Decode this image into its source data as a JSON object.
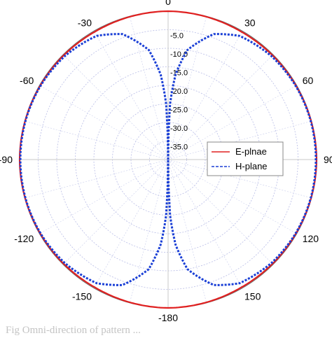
{
  "chart_data": {
    "type": "polar-line",
    "unit": "dB",
    "r_ticks": [
      "-5.0",
      "-10.0",
      "-15.0",
      "-20.0",
      "-25.0",
      "-30.0",
      "-35.0"
    ],
    "angle_ticks": [
      {
        "angle": 0,
        "label": "0"
      },
      {
        "angle": 30,
        "label": "30"
      },
      {
        "angle": 60,
        "label": "60"
      },
      {
        "angle": 90,
        "label": "90"
      },
      {
        "angle": 120,
        "label": "120"
      },
      {
        "angle": 150,
        "label": "150"
      },
      {
        "angle": 180,
        "label": "-180"
      },
      {
        "angle": -150,
        "label": "-150"
      },
      {
        "angle": -120,
        "label": "-120"
      },
      {
        "angle": -90,
        "label": "-90"
      },
      {
        "angle": -60,
        "label": "-60"
      },
      {
        "angle": -30,
        "label": "-30"
      }
    ],
    "r_min": -40,
    "r_max": 0,
    "legend_position": "right",
    "series": [
      {
        "name": "E-plnae",
        "color": "#e02020",
        "style": "solid",
        "angles": [
          0,
          30,
          60,
          90,
          120,
          150,
          180,
          -150,
          -120,
          -90,
          -60,
          -30
        ],
        "values": [
          0,
          -0.3,
          -0.2,
          0,
          -0.2,
          -0.3,
          0,
          -0.3,
          -0.2,
          0,
          -0.2,
          -0.3
        ]
      },
      {
        "name": "H-plane",
        "color": "#1a3fd6",
        "style": "dashed",
        "angles": [
          0,
          2,
          5,
          10,
          20,
          30,
          45,
          60,
          75,
          90,
          105,
          120,
          135,
          150,
          160,
          170,
          175,
          178,
          180,
          -178,
          -175,
          -170,
          -160,
          -150,
          -135,
          -120,
          -105,
          -90,
          -75,
          -60,
          -45,
          -30,
          -20,
          -10,
          -5,
          -2
        ],
        "values": [
          -40,
          -25,
          -17,
          -10,
          -4,
          -1.5,
          -0.6,
          -0.3,
          -0.2,
          -0.2,
          -0.2,
          -0.3,
          -0.6,
          -1.5,
          -4,
          -10,
          -17,
          -25,
          -40,
          -25,
          -17,
          -10,
          -4,
          -1.5,
          -0.6,
          -0.3,
          -0.2,
          -0.2,
          -0.2,
          -0.3,
          -0.6,
          -1.5,
          -4,
          -10,
          -17,
          -25
        ]
      }
    ]
  },
  "caption": "Fig        Omni-direction of   pattern ..."
}
